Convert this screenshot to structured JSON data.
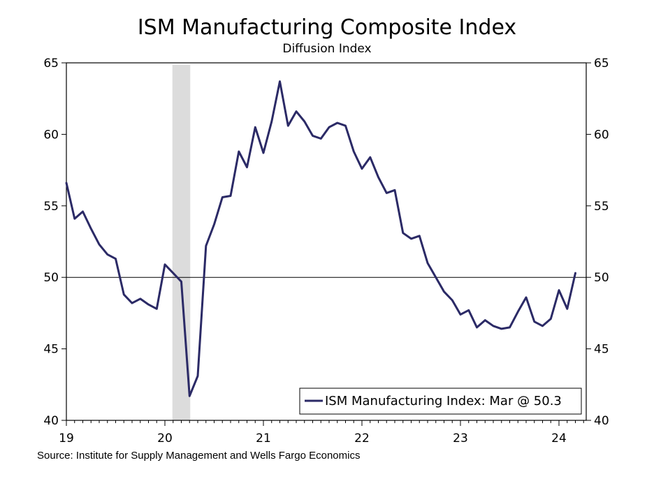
{
  "chart_data": {
    "type": "line",
    "title": "ISM Manufacturing Composite Index",
    "subtitle": "Diffusion Index",
    "source": "Source: Institute for Supply Management and Wells Fargo Economics",
    "ylim": [
      40,
      65
    ],
    "y_ticks": [
      "40",
      "45",
      "50",
      "55",
      "60",
      "65"
    ],
    "x_ticks": [
      "19",
      "20",
      "21",
      "22",
      "23",
      "24"
    ],
    "reference_line": 50,
    "recession_shading": {
      "start": "2020-02",
      "end": "2020-04",
      "color": "#dcdcdc"
    },
    "legend": {
      "label": "ISM Manufacturing Index: Mar @ 50.3",
      "position": "bottom-right"
    },
    "series": [
      {
        "name": "ISM Manufacturing Index",
        "color": "#2b2a66",
        "x": [
          "2019-01",
          "2019-02",
          "2019-03",
          "2019-04",
          "2019-05",
          "2019-06",
          "2019-07",
          "2019-08",
          "2019-09",
          "2019-10",
          "2019-11",
          "2019-12",
          "2020-01",
          "2020-02",
          "2020-03",
          "2020-04",
          "2020-05",
          "2020-06",
          "2020-07",
          "2020-08",
          "2020-09",
          "2020-10",
          "2020-11",
          "2020-12",
          "2021-01",
          "2021-02",
          "2021-03",
          "2021-04",
          "2021-05",
          "2021-06",
          "2021-07",
          "2021-08",
          "2021-09",
          "2021-10",
          "2021-11",
          "2021-12",
          "2022-01",
          "2022-02",
          "2022-03",
          "2022-04",
          "2022-05",
          "2022-06",
          "2022-07",
          "2022-08",
          "2022-09",
          "2022-10",
          "2022-11",
          "2022-12",
          "2023-01",
          "2023-02",
          "2023-03",
          "2023-04",
          "2023-05",
          "2023-06",
          "2023-07",
          "2023-08",
          "2023-09",
          "2023-10",
          "2023-11",
          "2023-12",
          "2024-01",
          "2024-02",
          "2024-03"
        ],
        "values": [
          56.6,
          54.1,
          54.6,
          53.4,
          52.3,
          51.6,
          51.3,
          48.8,
          48.2,
          48.5,
          48.1,
          47.8,
          50.9,
          50.3,
          49.7,
          41.7,
          43.1,
          52.2,
          53.7,
          55.6,
          55.7,
          58.8,
          57.7,
          60.5,
          58.7,
          60.9,
          63.7,
          60.6,
          61.6,
          60.9,
          59.9,
          59.7,
          60.5,
          60.8,
          60.6,
          58.8,
          57.6,
          58.4,
          57.0,
          55.9,
          56.1,
          53.1,
          52.7,
          52.9,
          51.0,
          50.0,
          49.0,
          48.4,
          47.4,
          47.7,
          46.5,
          47.0,
          46.6,
          46.4,
          46.5,
          47.6,
          48.6,
          46.9,
          46.6,
          47.1,
          49.1,
          47.8,
          50.3
        ]
      }
    ]
  }
}
